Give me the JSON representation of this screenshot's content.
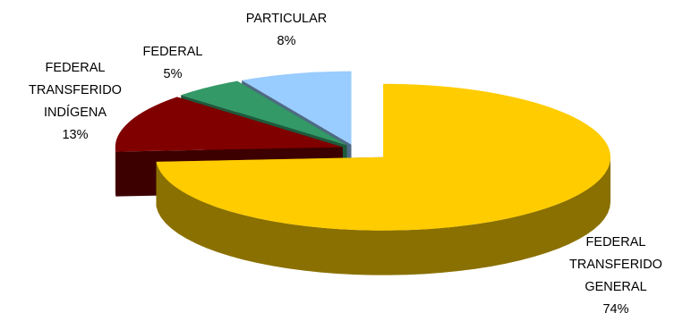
{
  "chart_data": {
    "type": "pie",
    "style": "3d-exploded",
    "title": "",
    "slices": [
      {
        "label_lines": [
          "FEDERAL",
          "TRANSFERIDO",
          "GENERAL"
        ],
        "percent_label": "74%",
        "value": 74,
        "color": "#FFCC00",
        "side_color": "#8A7000"
      },
      {
        "label_lines": [
          "FEDERAL",
          "TRANSFERIDO",
          "INDÍGENA"
        ],
        "percent_label": "13%",
        "value": 13,
        "color": "#800000",
        "side_color": "#3D0000"
      },
      {
        "label_lines": [
          "FEDERAL"
        ],
        "percent_label": "5%",
        "value": 5,
        "color": "#339966",
        "side_color": "#1E5A3C"
      },
      {
        "label_lines": [
          "PARTICULAR"
        ],
        "percent_label": "8%",
        "value": 8,
        "color": "#99CCFF",
        "side_color": "#4F6B86"
      }
    ],
    "legend": "none"
  }
}
